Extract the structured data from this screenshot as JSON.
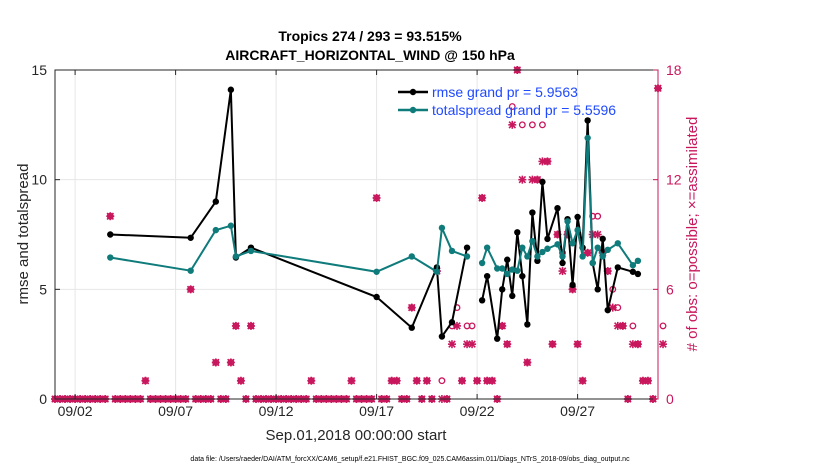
{
  "chart_data": {
    "type": "line",
    "title_line1": "Tropics 274 / 293 = 93.515%",
    "title_line2": "AIRCRAFT_HORIZONTAL_WIND @ 150 hPa",
    "xlabel": "Sep.01,2018 00:00:00 start",
    "ylabel": "rmse and totalspread",
    "y2label": "# of obs: o=possible; ×=assimilated",
    "xlim": [
      0,
      30
    ],
    "ylim": [
      0,
      15
    ],
    "y2lim": [
      0,
      18
    ],
    "x_ticks": [
      {
        "x": 1,
        "label": "09/02"
      },
      {
        "x": 6,
        "label": "09/07"
      },
      {
        "x": 11,
        "label": "09/12"
      },
      {
        "x": 16,
        "label": "09/17"
      },
      {
        "x": 21,
        "label": "09/22"
      },
      {
        "x": 26,
        "label": "09/27"
      }
    ],
    "y_ticks": [
      0,
      5,
      10,
      15
    ],
    "y2_ticks": [
      0,
      6,
      12,
      18
    ],
    "grid": true,
    "legend_position": "top-right",
    "footer": "data file: /Users/raeder/DAI/ATM_forcXX/CAM6_setup/f.e21.FHIST_BGC.f09_025.CAM6assim.011/Diags_NTrS_2018-09/obs_diag_output.nc",
    "series": [
      {
        "name": "rmse grand pr = 5.9563",
        "color": "#000000",
        "points": [
          [
            2.75,
            7.5
          ],
          [
            6.75,
            7.35
          ],
          [
            8.0,
            9.0
          ],
          [
            8.75,
            14.1
          ],
          [
            9.0,
            6.45
          ],
          [
            9.75,
            6.9
          ],
          [
            16.0,
            4.65
          ],
          [
            17.75,
            3.25
          ],
          [
            19.0,
            6.0
          ],
          [
            19.25,
            2.85
          ],
          [
            19.75,
            3.5
          ],
          [
            20.5,
            6.9
          ],
          [
            21.0,
            null
          ],
          [
            21.25,
            4.5
          ],
          [
            21.5,
            5.6
          ],
          [
            22.0,
            2.75
          ],
          [
            22.25,
            5.0
          ],
          [
            22.5,
            6.35
          ],
          [
            22.75,
            4.7
          ],
          [
            23.0,
            7.6
          ],
          [
            23.25,
            5.6
          ],
          [
            23.5,
            3.4
          ],
          [
            23.75,
            8.5
          ],
          [
            24.0,
            6.3
          ],
          [
            24.25,
            9.9
          ],
          [
            24.5,
            7.3
          ],
          [
            25.0,
            8.7
          ],
          [
            25.25,
            6.2
          ],
          [
            25.5,
            8.2
          ],
          [
            25.75,
            5.2
          ],
          [
            26.0,
            8.3
          ],
          [
            26.25,
            6.9
          ],
          [
            26.5,
            12.7
          ],
          [
            26.75,
            6.2
          ],
          [
            27.0,
            5.0
          ],
          [
            27.25,
            7.3
          ],
          [
            27.5,
            4.05
          ],
          [
            28.0,
            6.0
          ],
          [
            28.75,
            5.8
          ],
          [
            29.0,
            5.7
          ]
        ]
      },
      {
        "name": "totalspread grand pr = 5.5596",
        "color": "#0f7b7b",
        "points": [
          [
            2.75,
            6.45
          ],
          [
            6.75,
            5.85
          ],
          [
            8.0,
            7.7
          ],
          [
            8.75,
            7.9
          ],
          [
            9.0,
            6.5
          ],
          [
            9.75,
            6.75
          ],
          [
            16.0,
            5.8
          ],
          [
            17.75,
            6.5
          ],
          [
            19.0,
            5.8
          ],
          [
            19.25,
            7.8
          ],
          [
            19.75,
            6.75
          ],
          [
            20.5,
            6.5
          ],
          [
            21.0,
            null
          ],
          [
            21.25,
            6.2
          ],
          [
            21.5,
            6.9
          ],
          [
            22.0,
            5.95
          ],
          [
            22.25,
            5.95
          ],
          [
            22.5,
            5.7
          ],
          [
            22.75,
            5.9
          ],
          [
            23.0,
            5.85
          ],
          [
            23.25,
            6.9
          ],
          [
            23.5,
            6.5
          ],
          [
            23.75,
            7.2
          ],
          [
            24.0,
            6.5
          ],
          [
            24.25,
            6.7
          ],
          [
            24.5,
            6.85
          ],
          [
            25.0,
            7.05
          ],
          [
            25.25,
            6.5
          ],
          [
            25.5,
            8.1
          ],
          [
            25.75,
            7.1
          ],
          [
            26.0,
            7.7
          ],
          [
            26.25,
            6.5
          ],
          [
            26.5,
            11.9
          ],
          [
            26.75,
            6.2
          ],
          [
            27.0,
            6.9
          ],
          [
            27.25,
            6.5
          ],
          [
            27.5,
            6.8
          ],
          [
            28.0,
            7.1
          ],
          [
            28.75,
            6.1
          ],
          [
            29.0,
            6.3
          ]
        ]
      }
    ],
    "obs_possible": {
      "name": "possible",
      "color": "#c8175d",
      "points": [
        [
          0.0,
          0
        ],
        [
          0.25,
          0
        ],
        [
          0.5,
          0
        ],
        [
          0.75,
          0
        ],
        [
          1.0,
          0
        ],
        [
          1.25,
          0
        ],
        [
          1.5,
          0
        ],
        [
          1.75,
          0
        ],
        [
          2.0,
          0
        ],
        [
          2.25,
          0
        ],
        [
          2.5,
          0
        ],
        [
          2.75,
          10
        ],
        [
          3.0,
          0
        ],
        [
          3.25,
          0
        ],
        [
          3.5,
          0
        ],
        [
          3.75,
          0
        ],
        [
          4.0,
          0
        ],
        [
          4.25,
          0
        ],
        [
          4.5,
          1
        ],
        [
          4.75,
          0
        ],
        [
          5.0,
          0
        ],
        [
          5.25,
          0
        ],
        [
          5.5,
          0
        ],
        [
          5.75,
          0
        ],
        [
          6.0,
          0
        ],
        [
          6.25,
          0
        ],
        [
          6.5,
          0
        ],
        [
          6.75,
          6
        ],
        [
          7.0,
          0
        ],
        [
          7.25,
          0
        ],
        [
          7.5,
          0
        ],
        [
          7.75,
          0
        ],
        [
          8.0,
          2
        ],
        [
          8.25,
          0
        ],
        [
          8.5,
          0
        ],
        [
          8.75,
          2
        ],
        [
          9.0,
          4
        ],
        [
          9.25,
          1
        ],
        [
          9.5,
          0
        ],
        [
          9.75,
          4
        ],
        [
          10.0,
          0
        ],
        [
          10.25,
          0
        ],
        [
          10.5,
          0
        ],
        [
          10.75,
          0
        ],
        [
          11.0,
          0
        ],
        [
          11.25,
          0
        ],
        [
          11.5,
          0
        ],
        [
          11.75,
          0
        ],
        [
          12.0,
          0
        ],
        [
          12.25,
          0
        ],
        [
          12.5,
          0
        ],
        [
          12.75,
          1
        ],
        [
          13.0,
          0
        ],
        [
          13.25,
          0
        ],
        [
          13.5,
          0
        ],
        [
          13.75,
          0
        ],
        [
          14.0,
          0
        ],
        [
          14.25,
          0
        ],
        [
          14.5,
          0
        ],
        [
          14.75,
          1
        ],
        [
          15.0,
          0
        ],
        [
          15.25,
          0
        ],
        [
          15.5,
          0
        ],
        [
          15.75,
          0
        ],
        [
          16.0,
          11
        ],
        [
          16.25,
          0
        ],
        [
          16.5,
          0
        ],
        [
          16.75,
          1
        ],
        [
          17.0,
          1
        ],
        [
          17.25,
          0
        ],
        [
          17.5,
          0
        ],
        [
          17.75,
          5
        ],
        [
          18.0,
          1
        ],
        [
          18.25,
          0
        ],
        [
          18.5,
          1
        ],
        [
          18.75,
          0
        ],
        [
          19.0,
          7
        ],
        [
          19.25,
          1
        ],
        [
          19.5,
          0
        ],
        [
          19.75,
          4
        ],
        [
          20.0,
          5
        ],
        [
          20.25,
          1
        ],
        [
          20.5,
          4
        ],
        [
          20.75,
          4
        ],
        [
          21.0,
          1
        ],
        [
          21.25,
          11
        ],
        [
          21.5,
          1
        ],
        [
          21.75,
          1
        ],
        [
          22.0,
          0
        ],
        [
          22.25,
          4
        ],
        [
          22.5,
          3
        ],
        [
          22.75,
          16
        ],
        [
          23.0,
          18
        ],
        [
          23.25,
          15
        ],
        [
          23.5,
          2
        ],
        [
          23.75,
          15
        ],
        [
          24.0,
          12
        ],
        [
          24.25,
          15
        ],
        [
          24.5,
          13
        ],
        [
          24.75,
          3
        ],
        [
          25.0,
          9
        ],
        [
          25.25,
          8
        ],
        [
          25.5,
          9
        ],
        [
          25.75,
          6
        ],
        [
          26.0,
          3
        ],
        [
          26.25,
          1
        ],
        [
          26.5,
          8
        ],
        [
          26.75,
          10
        ],
        [
          27.0,
          10
        ],
        [
          27.25,
          8
        ],
        [
          27.5,
          7
        ],
        [
          27.75,
          6
        ],
        [
          28.0,
          5
        ],
        [
          28.25,
          4
        ],
        [
          28.5,
          0
        ],
        [
          28.75,
          4
        ],
        [
          29.0,
          3
        ],
        [
          29.25,
          1
        ],
        [
          29.5,
          1
        ],
        [
          29.75,
          0
        ],
        [
          30.0,
          17
        ],
        [
          30.25,
          4
        ]
      ]
    },
    "obs_assimilated": {
      "name": "assimilated",
      "color": "#c8175d",
      "points": [
        [
          0.0,
          0
        ],
        [
          0.25,
          0
        ],
        [
          0.5,
          0
        ],
        [
          0.75,
          0
        ],
        [
          1.0,
          0
        ],
        [
          1.25,
          0
        ],
        [
          1.5,
          0
        ],
        [
          1.75,
          0
        ],
        [
          2.0,
          0
        ],
        [
          2.25,
          0
        ],
        [
          2.5,
          0
        ],
        [
          2.75,
          10
        ],
        [
          3.0,
          0
        ],
        [
          3.25,
          0
        ],
        [
          3.5,
          0
        ],
        [
          3.75,
          0
        ],
        [
          4.0,
          0
        ],
        [
          4.25,
          0
        ],
        [
          4.5,
          1
        ],
        [
          4.75,
          0
        ],
        [
          5.0,
          0
        ],
        [
          5.25,
          0
        ],
        [
          5.5,
          0
        ],
        [
          5.75,
          0
        ],
        [
          6.0,
          0
        ],
        [
          6.25,
          0
        ],
        [
          6.5,
          0
        ],
        [
          6.75,
          6
        ],
        [
          7.0,
          0
        ],
        [
          7.25,
          0
        ],
        [
          7.5,
          0
        ],
        [
          7.75,
          0
        ],
        [
          8.0,
          2
        ],
        [
          8.25,
          0
        ],
        [
          8.5,
          0
        ],
        [
          8.75,
          2
        ],
        [
          9.0,
          4
        ],
        [
          9.25,
          1
        ],
        [
          9.5,
          0
        ],
        [
          9.75,
          4
        ],
        [
          10.0,
          0
        ],
        [
          10.25,
          0
        ],
        [
          10.5,
          0
        ],
        [
          10.75,
          0
        ],
        [
          11.0,
          0
        ],
        [
          11.25,
          0
        ],
        [
          11.5,
          0
        ],
        [
          11.75,
          0
        ],
        [
          12.0,
          0
        ],
        [
          12.25,
          0
        ],
        [
          12.5,
          0
        ],
        [
          12.75,
          1
        ],
        [
          13.0,
          0
        ],
        [
          13.25,
          0
        ],
        [
          13.5,
          0
        ],
        [
          13.75,
          0
        ],
        [
          14.0,
          0
        ],
        [
          14.25,
          0
        ],
        [
          14.5,
          0
        ],
        [
          14.75,
          1
        ],
        [
          15.0,
          0
        ],
        [
          15.25,
          0
        ],
        [
          15.5,
          0
        ],
        [
          15.75,
          0
        ],
        [
          16.0,
          11
        ],
        [
          16.25,
          0
        ],
        [
          16.5,
          0
        ],
        [
          16.75,
          1
        ],
        [
          17.0,
          1
        ],
        [
          17.25,
          0
        ],
        [
          17.5,
          0
        ],
        [
          17.75,
          5
        ],
        [
          18.0,
          1
        ],
        [
          18.25,
          0
        ],
        [
          18.5,
          1
        ],
        [
          18.75,
          0
        ],
        [
          19.0,
          7
        ],
        [
          19.25,
          0
        ],
        [
          19.5,
          0
        ],
        [
          19.75,
          3
        ],
        [
          20.0,
          4
        ],
        [
          20.25,
          1
        ],
        [
          20.5,
          3
        ],
        [
          20.75,
          3
        ],
        [
          21.0,
          1
        ],
        [
          21.25,
          11
        ],
        [
          21.5,
          1
        ],
        [
          21.75,
          1
        ],
        [
          22.0,
          0
        ],
        [
          22.25,
          4
        ],
        [
          22.5,
          3
        ],
        [
          22.75,
          15
        ],
        [
          23.0,
          18
        ],
        [
          23.25,
          12
        ],
        [
          23.5,
          2
        ],
        [
          23.75,
          12
        ],
        [
          24.0,
          12
        ],
        [
          24.25,
          13
        ],
        [
          24.5,
          13
        ],
        [
          24.75,
          3
        ],
        [
          25.0,
          9
        ],
        [
          25.25,
          7
        ],
        [
          25.5,
          9
        ],
        [
          25.75,
          6
        ],
        [
          26.0,
          3
        ],
        [
          26.25,
          1
        ],
        [
          26.5,
          8
        ],
        [
          26.75,
          9
        ],
        [
          27.0,
          9
        ],
        [
          27.25,
          8
        ],
        [
          27.5,
          7
        ],
        [
          27.75,
          5
        ],
        [
          28.0,
          4
        ],
        [
          28.25,
          4
        ],
        [
          28.5,
          0
        ],
        [
          28.75,
          3
        ],
        [
          29.0,
          3
        ],
        [
          29.25,
          1
        ],
        [
          29.5,
          1
        ],
        [
          29.75,
          0
        ],
        [
          30.0,
          17
        ],
        [
          30.25,
          3
        ]
      ]
    }
  }
}
